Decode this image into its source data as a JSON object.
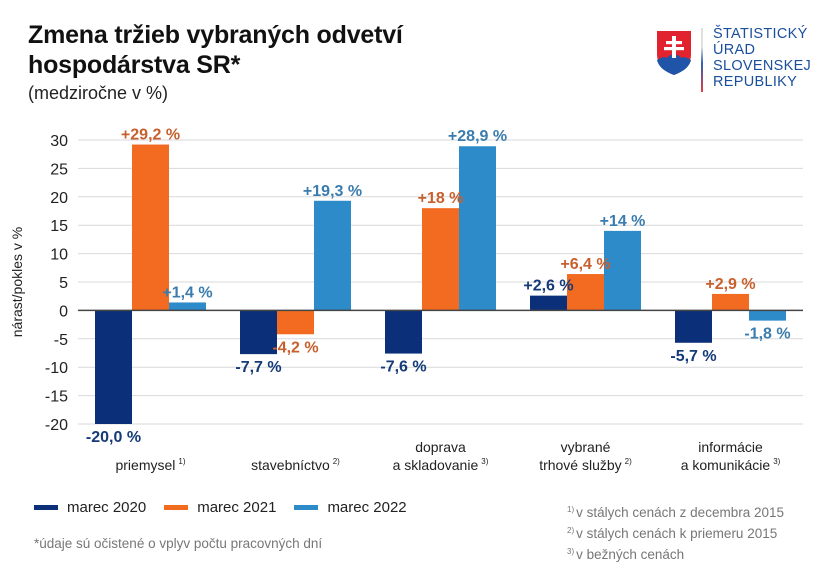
{
  "header": {
    "title_line1": "Zmena tržieb vybraných odvetví",
    "title_line2": "hospodárstva SR*",
    "subtitle": "(medziročne v %)"
  },
  "logo": {
    "icon": "slovak-coat-of-arms-icon",
    "lines": [
      "ŠTATISTICKÝ",
      "ÚRAD",
      "SLOVENSKEJ",
      "REPUBLIKY"
    ]
  },
  "chart_data": {
    "type": "bar",
    "title": "Zmena tržieb vybraných odvetví hospodárstva SR*",
    "subtitle": "(medziročne v %)",
    "xlabel": "",
    "ylabel": "nárast/pokles v %",
    "ylim": [
      -20,
      30
    ],
    "yticks": [
      30,
      25,
      20,
      15,
      10,
      5,
      0,
      -5,
      -10,
      -15,
      -20
    ],
    "grid": true,
    "legend_position": "bottom-left",
    "categories": [
      {
        "lines": [
          "",
          "priemysel"
        ],
        "note": "1)"
      },
      {
        "lines": [
          "",
          "stavebníctvo"
        ],
        "note": "2)"
      },
      {
        "lines": [
          "doprava",
          "a skladovanie"
        ],
        "note": "3)"
      },
      {
        "lines": [
          "vybrané",
          "trhové služby"
        ],
        "note": "2)"
      },
      {
        "lines": [
          "informácie",
          "a komunikácie"
        ],
        "note": "3)"
      }
    ],
    "series": [
      {
        "name": "marec 2020",
        "color": "#0b2f78",
        "label_color": "#143a78",
        "values": [
          -20.0,
          -7.7,
          -7.6,
          2.6,
          -5.7
        ],
        "labels": [
          "-20,0 %",
          "-7,7 %",
          "-7,6 %",
          "+2,6 %",
          "-5,7 %"
        ]
      },
      {
        "name": "marec 2021",
        "color": "#f26b21",
        "label_color": "#c8602e",
        "values": [
          29.2,
          -4.2,
          18.0,
          6.4,
          2.9
        ],
        "labels": [
          "+29,2 %",
          "-4,2 %",
          "+18 %",
          "+6,4 %",
          "+2,9 %"
        ]
      },
      {
        "name": "marec 2022",
        "color": "#2e8bc9",
        "label_color": "#3b7cae",
        "values": [
          1.4,
          19.3,
          28.9,
          14.0,
          -1.8
        ],
        "labels": [
          "+1,4 %",
          "+19,3 %",
          "+28,9 %",
          "+14 %",
          "-1,8 %"
        ]
      }
    ]
  },
  "legend": {
    "items": [
      {
        "label": "marec 2020",
        "color": "#0b2f78"
      },
      {
        "label": "marec 2021",
        "color": "#f26b21"
      },
      {
        "label": "marec 2022",
        "color": "#2e8bc9"
      }
    ]
  },
  "footnote": "*údaje sú očistené o vplyv počtu pracovných dní",
  "notes": [
    {
      "mark": "1)",
      "text": "v stálych cenách z decembra 2015"
    },
    {
      "mark": "2)",
      "text": "v stálych cenách k priemeru 2015"
    },
    {
      "mark": "3)",
      "text": "v bežných cenách"
    }
  ]
}
